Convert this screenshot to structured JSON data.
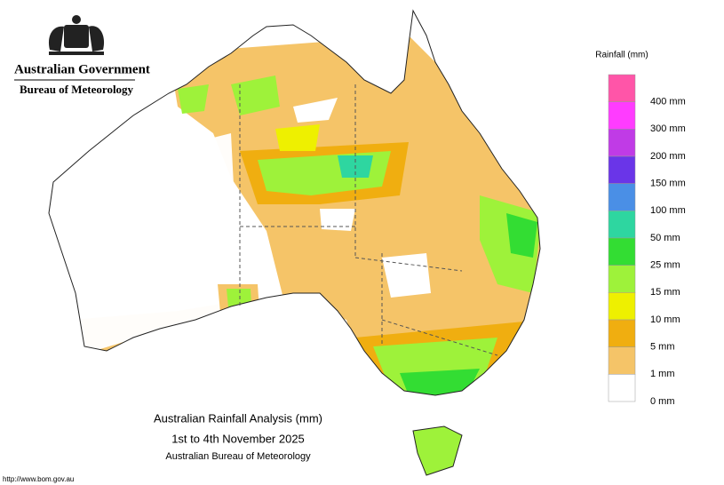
{
  "header": {
    "agency": "Australian Government",
    "bureau": "Bureau of Meteorology"
  },
  "map": {
    "title": "Australian Rainfall Analysis (mm)",
    "period": "1st to 4th November 2025",
    "source": "Australian Bureau of Meteorology",
    "url": "http://www.bom.gov.au"
  },
  "legend": {
    "title": "Rainfall (mm)",
    "colors": [
      "#ff55a8",
      "#ff3cff",
      "#c03be6",
      "#6a35e8",
      "#4a8fe6",
      "#2ed6a0",
      "#33dd33",
      "#9ef23a",
      "#eef000",
      "#f0ae10",
      "#f5c468",
      "#ffffff"
    ],
    "labels": [
      "400 mm",
      "300 mm",
      "200 mm",
      "150 mm",
      "100 mm",
      "50 mm",
      "25 mm",
      "15 mm",
      "10 mm",
      "5 mm",
      "1 mm",
      "0 mm"
    ]
  }
}
